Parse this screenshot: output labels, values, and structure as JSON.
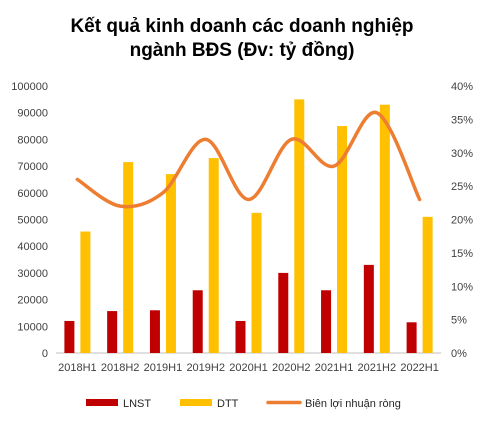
{
  "chart_data": {
    "type": "bar",
    "title_lines": [
      "Kết quả kinh doanh các doanh nghiệp",
      "ngành BĐS (Đv: tỷ đồng)"
    ],
    "categories": [
      "2018H1",
      "2018H2",
      "2019H1",
      "2019H2",
      "2020H1",
      "2020H2",
      "2021H1",
      "2021H2",
      "2022H1"
    ],
    "series": [
      {
        "name": "LNST",
        "kind": "bar",
        "axis": "left",
        "color": "#C00000",
        "values": [
          12000,
          15700,
          16000,
          23500,
          12000,
          30000,
          23500,
          33000,
          11500
        ]
      },
      {
        "name": "DTT",
        "kind": "bar",
        "axis": "left",
        "color": "#FFC000",
        "values": [
          45500,
          71500,
          67000,
          73000,
          52500,
          95000,
          85000,
          93000,
          51000
        ]
      },
      {
        "name": "Biên lợi nhuận ròng",
        "kind": "line",
        "axis": "right",
        "color": "#ED7D31",
        "values": [
          26,
          22,
          24,
          32,
          23,
          32,
          28,
          36,
          23
        ]
      }
    ],
    "y_left": {
      "min": 0,
      "max": 100000,
      "step": 10000,
      "tick_labels": [
        "0",
        "10000",
        "20000",
        "30000",
        "40000",
        "50000",
        "60000",
        "70000",
        "80000",
        "90000",
        "100000"
      ]
    },
    "y_right": {
      "min": 0,
      "max": 40,
      "step": 5,
      "tick_labels": [
        "0%",
        "5%",
        "10%",
        "15%",
        "20%",
        "25%",
        "30%",
        "35%",
        "40%"
      ]
    },
    "grid": false,
    "legend": {
      "position": "bottom",
      "items": [
        "LNST",
        "DTT",
        "Biên lợi nhuận ròng"
      ]
    }
  }
}
